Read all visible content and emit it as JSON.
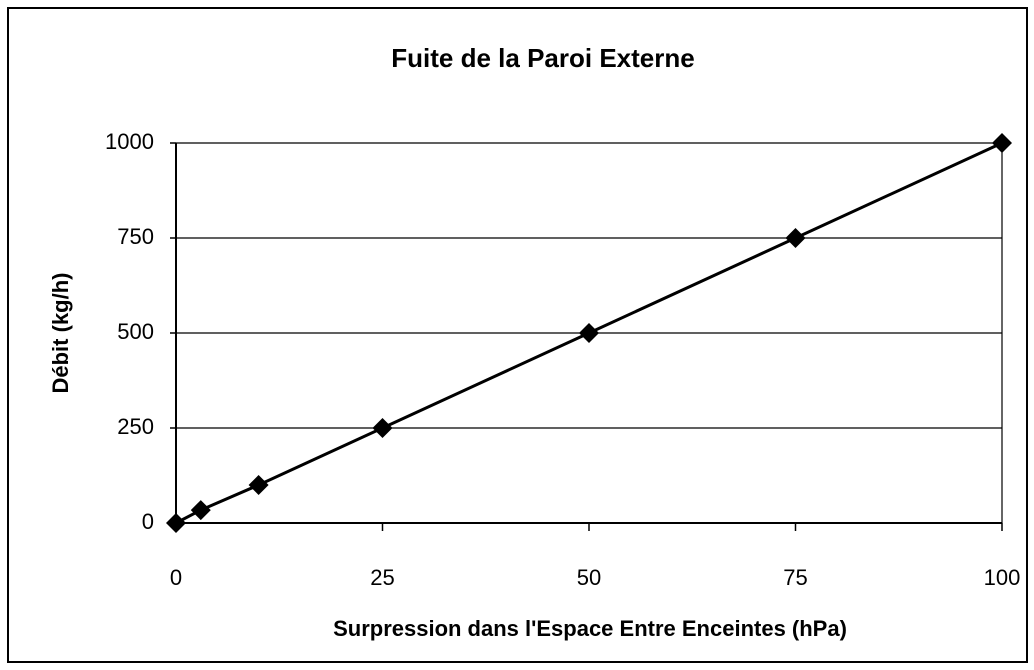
{
  "chart_data": {
    "type": "line",
    "title": "Fuite de la Paroi Externe",
    "x_label": "Surpression dans l'Espace Entre Enceintes (hPa)",
    "y_label": "Débit (kg/h)",
    "x": [
      0,
      3,
      10,
      25,
      50,
      75,
      100
    ],
    "series": [
      {
        "color": "#000000",
        "values": [
          0,
          34,
          100,
          250,
          500,
          750,
          1000
        ]
      }
    ],
    "xlim": [
      0,
      100
    ],
    "xticks": [
      0,
      25,
      50,
      75,
      100
    ],
    "ylim": [
      0,
      1000
    ],
    "yticks": [
      0,
      250,
      500,
      750,
      1000
    ],
    "grid": true
  }
}
